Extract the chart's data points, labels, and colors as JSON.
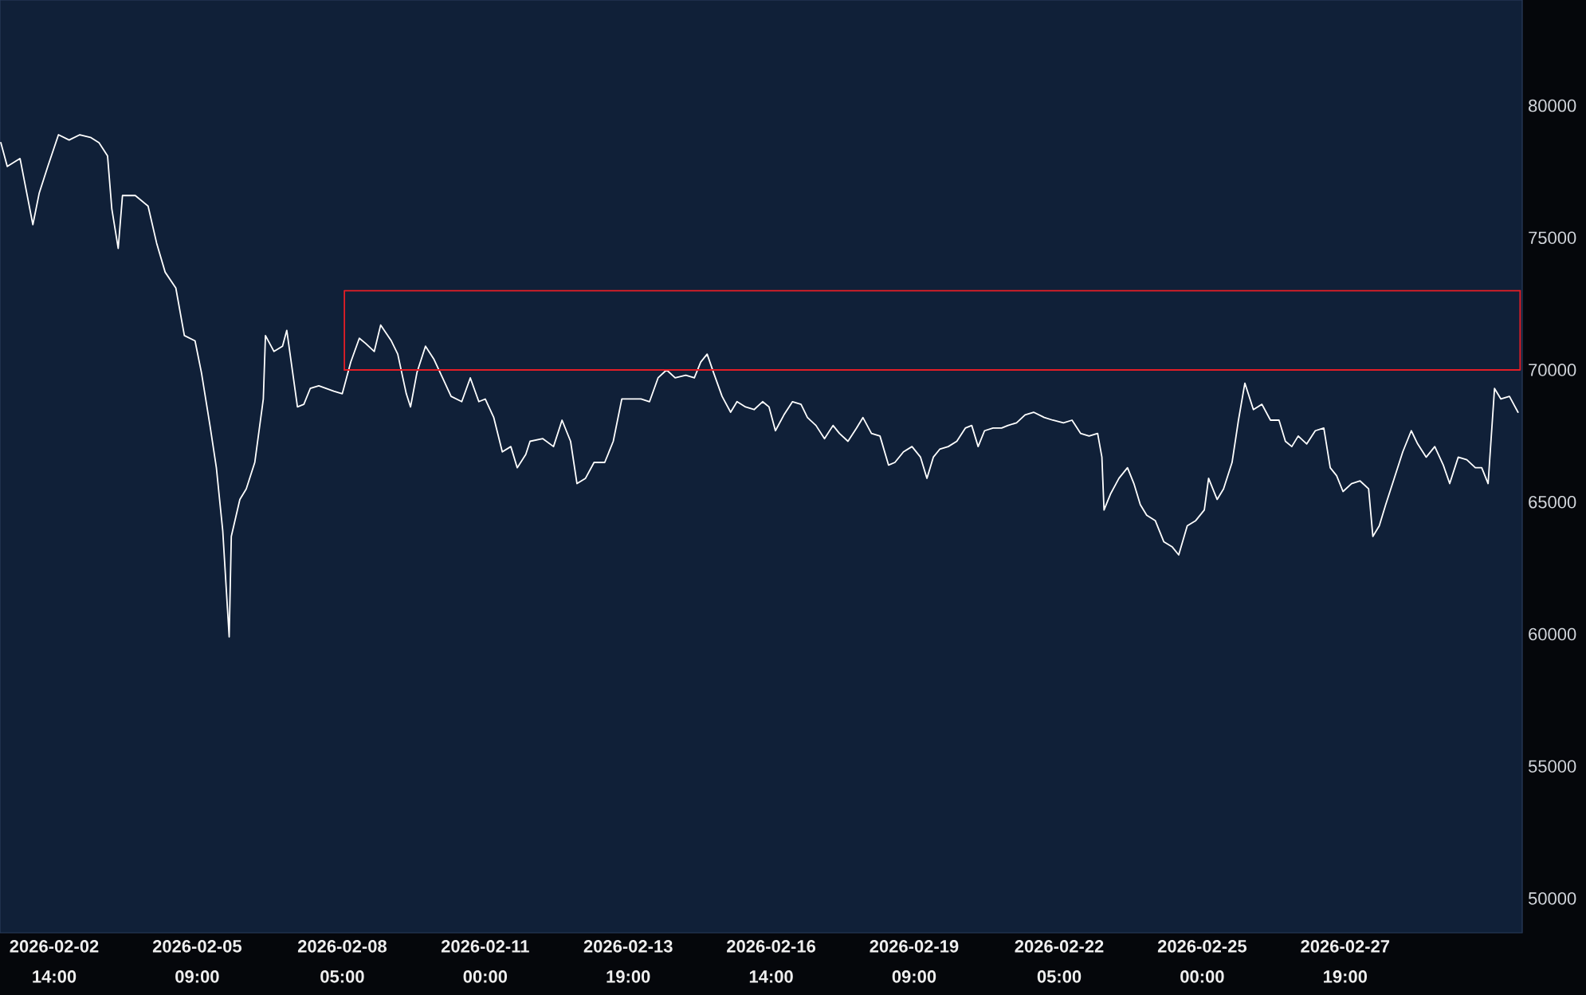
{
  "chart_data": {
    "type": "line",
    "xlim": [
      "2026-02-01T12:36",
      "2026-03-03T06:00"
    ],
    "xticks": [
      {
        "value": "2026-02-02T14:00",
        "label": "2026-02-02 14:00"
      },
      {
        "value": "2026-02-05T09:00",
        "label": "2026-02-05 09:00"
      },
      {
        "value": "2026-02-08T05:00",
        "label": "2026-02-08 05:00"
      },
      {
        "value": "2026-02-11T00:00",
        "label": "2026-02-11 00:00"
      },
      {
        "value": "2026-02-13T19:00",
        "label": "2026-02-13 19:00"
      },
      {
        "value": "2026-02-16T14:00",
        "label": "2026-02-16 14:00"
      },
      {
        "value": "2026-02-19T09:00",
        "label": "2026-02-19 09:00"
      },
      {
        "value": "2026-02-22T05:00",
        "label": "2026-02-22 05:00"
      },
      {
        "value": "2026-02-25T00:00",
        "label": "2026-02-25 00:00"
      },
      {
        "value": "2026-02-27T19:00",
        "label": "2026-02-27 19:00"
      }
    ],
    "ylim": [
      48700,
      84000
    ],
    "yticks": [
      50000,
      55000,
      60000,
      65000,
      70000,
      75000,
      80000
    ],
    "series": [
      {
        "color": "#ffffff",
        "x": [
          "2026-02-01T13:00",
          "2026-02-01T16:00",
          "2026-02-01T22:00",
          "2026-02-02T04:00",
          "2026-02-02T07:00",
          "2026-02-02T11:00",
          "2026-02-02T16:00",
          "2026-02-02T21:00",
          "2026-02-03T02:00",
          "2026-02-03T07:00",
          "2026-02-03T11:00",
          "2026-02-03T15:00",
          "2026-02-03T17:00",
          "2026-02-03T20:00",
          "2026-02-03T22:00",
          "2026-02-04T04:00",
          "2026-02-04T10:00",
          "2026-02-04T14:00",
          "2026-02-04T18:00",
          "2026-02-04T23:00",
          "2026-02-05T03:00",
          "2026-02-05T08:00",
          "2026-02-05T11:00",
          "2026-02-05T15:00",
          "2026-02-05T18:00",
          "2026-02-05T21:00",
          "2026-02-06T00:00",
          "2026-02-06T01:00",
          "2026-02-06T05:00",
          "2026-02-06T08:00",
          "2026-02-06T12:00",
          "2026-02-06T16:00",
          "2026-02-06T17:00",
          "2026-02-06T21:00",
          "2026-02-07T01:00",
          "2026-02-07T03:00",
          "2026-02-07T08:00",
          "2026-02-07T11:00",
          "2026-02-07T14:00",
          "2026-02-07T18:00",
          "2026-02-08T01:00",
          "2026-02-08T05:00",
          "2026-02-08T09:00",
          "2026-02-08T13:00",
          "2026-02-08T16:00",
          "2026-02-08T20:00",
          "2026-02-08T23:00",
          "2026-02-09T04:00",
          "2026-02-09T07:00",
          "2026-02-09T11:00",
          "2026-02-09T13:00",
          "2026-02-09T16:00",
          "2026-02-09T20:00",
          "2026-02-10T00:00",
          "2026-02-10T04:00",
          "2026-02-10T08:00",
          "2026-02-10T13:00",
          "2026-02-10T17:00",
          "2026-02-10T21:00",
          "2026-02-11T00:00",
          "2026-02-11T04:00",
          "2026-02-11T08:00",
          "2026-02-11T12:00",
          "2026-02-11T15:00",
          "2026-02-11T19:00",
          "2026-02-11T21:00",
          "2026-02-12T03:00",
          "2026-02-12T08:00",
          "2026-02-12T12:00",
          "2026-02-12T16:00",
          "2026-02-12T19:00",
          "2026-02-12T23:00",
          "2026-02-13T03:00",
          "2026-02-13T08:00",
          "2026-02-13T12:00",
          "2026-02-13T16:00",
          "2026-02-13T20:00",
          "2026-02-14T01:00",
          "2026-02-14T05:00",
          "2026-02-14T09:00",
          "2026-02-14T13:00",
          "2026-02-14T17:00",
          "2026-02-14T22:00",
          "2026-02-15T02:00",
          "2026-02-15T05:00",
          "2026-02-15T08:00",
          "2026-02-15T11:00",
          "2026-02-15T15:00",
          "2026-02-15T19:00",
          "2026-02-15T22:00",
          "2026-02-16T02:00",
          "2026-02-16T06:00",
          "2026-02-16T10:00",
          "2026-02-16T13:00",
          "2026-02-16T16:00",
          "2026-02-16T20:00",
          "2026-02-17T00:00",
          "2026-02-17T04:00",
          "2026-02-17T07:00",
          "2026-02-17T11:00",
          "2026-02-17T15:00",
          "2026-02-17T19:00",
          "2026-02-17T22:00",
          "2026-02-18T02:00",
          "2026-02-18T06:00",
          "2026-02-18T09:00",
          "2026-02-18T13:00",
          "2026-02-18T17:00",
          "2026-02-18T21:00",
          "2026-02-19T00:00",
          "2026-02-19T04:00",
          "2026-02-19T08:00",
          "2026-02-19T12:00",
          "2026-02-19T15:00",
          "2026-02-19T18:00",
          "2026-02-19T21:00",
          "2026-02-20T01:00",
          "2026-02-20T05:00",
          "2026-02-20T09:00",
          "2026-02-20T12:00",
          "2026-02-20T15:00",
          "2026-02-20T18:00",
          "2026-02-20T22:00",
          "2026-02-21T02:00",
          "2026-02-21T05:00",
          "2026-02-21T09:00",
          "2026-02-21T13:00",
          "2026-02-21T17:00",
          "2026-02-21T22:00",
          "2026-02-22T02:00",
          "2026-02-22T07:00",
          "2026-02-22T11:00",
          "2026-02-22T15:00",
          "2026-02-22T19:00",
          "2026-02-22T23:00",
          "2026-02-23T01:00",
          "2026-02-23T02:00",
          "2026-02-23T05:00",
          "2026-02-23T09:00",
          "2026-02-23T13:00",
          "2026-02-23T16:00",
          "2026-02-23T19:00",
          "2026-02-23T22:00",
          "2026-02-24T02:00",
          "2026-02-24T06:00",
          "2026-02-24T10:00",
          "2026-02-24T13:00",
          "2026-02-24T17:00",
          "2026-02-24T21:00",
          "2026-02-25T01:00",
          "2026-02-25T03:00",
          "2026-02-25T07:00",
          "2026-02-25T10:00",
          "2026-02-25T14:00",
          "2026-02-25T17:00",
          "2026-02-25T20:00",
          "2026-02-26T00:00",
          "2026-02-26T04:00",
          "2026-02-26T08:00",
          "2026-02-26T12:00",
          "2026-02-26T15:00",
          "2026-02-26T18:00",
          "2026-02-26T21:00",
          "2026-02-27T01:00",
          "2026-02-27T05:00",
          "2026-02-27T09:00",
          "2026-02-27T12:00",
          "2026-02-27T15:00",
          "2026-02-27T18:00",
          "2026-02-27T22:00",
          "2026-02-28T02:00",
          "2026-02-28T06:00",
          "2026-02-28T08:00",
          "2026-02-28T11:00",
          "2026-02-28T14:00",
          "2026-02-28T18:00",
          "2026-02-28T22:00",
          "2026-03-01T02:00",
          "2026-03-01T05:00",
          "2026-03-01T09:00",
          "2026-03-01T13:00",
          "2026-03-01T17:00",
          "2026-03-01T20:00",
          "2026-03-02T00:00",
          "2026-03-02T04:00",
          "2026-03-02T08:00",
          "2026-03-02T11:00",
          "2026-03-02T14:00",
          "2026-03-02T17:00",
          "2026-03-02T20:00",
          "2026-03-03T00:00",
          "2026-03-03T04:00"
        ],
        "values": [
          78600,
          77700,
          78000,
          75500,
          76700,
          77700,
          78900,
          78700,
          78900,
          78800,
          78600,
          78100,
          76100,
          74600,
          76600,
          76600,
          76200,
          74800,
          73700,
          73100,
          71300,
          71100,
          69900,
          67900,
          66300,
          63900,
          59900,
          63700,
          65100,
          65500,
          66500,
          68900,
          71300,
          70700,
          70900,
          71500,
          68600,
          68700,
          69300,
          69400,
          69200,
          69100,
          70300,
          71200,
          71000,
          70700,
          71700,
          71100,
          70600,
          69100,
          68600,
          69900,
          70900,
          70400,
          69700,
          69000,
          68800,
          69700,
          68800,
          68900,
          68200,
          66900,
          67100,
          66300,
          66800,
          67300,
          67400,
          67100,
          68100,
          67300,
          65700,
          65900,
          66500,
          66500,
          67300,
          68900,
          68900,
          68900,
          68800,
          69700,
          70000,
          69700,
          69800,
          69700,
          70300,
          70600,
          69900,
          69000,
          68400,
          68800,
          68600,
          68500,
          68800,
          68600,
          67700,
          68300,
          68800,
          68700,
          68200,
          67900,
          67400,
          67900,
          67600,
          67300,
          67800,
          68200,
          67600,
          67500,
          66400,
          66500,
          66900,
          67100,
          66700,
          65900,
          66700,
          67000,
          67100,
          67300,
          67800,
          67900,
          67100,
          67700,
          67800,
          67800,
          67900,
          68000,
          68300,
          68400,
          68200,
          68100,
          68000,
          68100,
          67600,
          67500,
          67600,
          66700,
          64700,
          65300,
          65900,
          66300,
          65700,
          64900,
          64500,
          64300,
          63500,
          63300,
          63000,
          64100,
          64300,
          64700,
          65900,
          65100,
          65500,
          66500,
          68100,
          69500,
          68500,
          68700,
          68100,
          68100,
          67300,
          67100,
          67500,
          67200,
          67700,
          67800,
          66300,
          66000,
          65400,
          65700,
          65800,
          65500,
          63700,
          64100,
          64900,
          65900,
          66900,
          67700,
          67200,
          66700,
          67100,
          66400,
          65700,
          66700,
          66600,
          66300,
          66300,
          65700,
          69300,
          68900,
          69000,
          68400
        ]
      },
      {
        "color": "#e41e26",
        "x": [
          "2026-02-08T06:00",
          "2026-02-08T06:00",
          "2026-03-03T05:00"
        ],
        "values": [
          70000,
          73000,
          73000
        ]
      },
      {
        "color": "#e41e26",
        "x": [
          "2026-02-08T06:00",
          "2026-03-03T05:00",
          "2026-03-03T05:00"
        ],
        "values": [
          70000,
          70000,
          73000
        ]
      }
    ]
  }
}
